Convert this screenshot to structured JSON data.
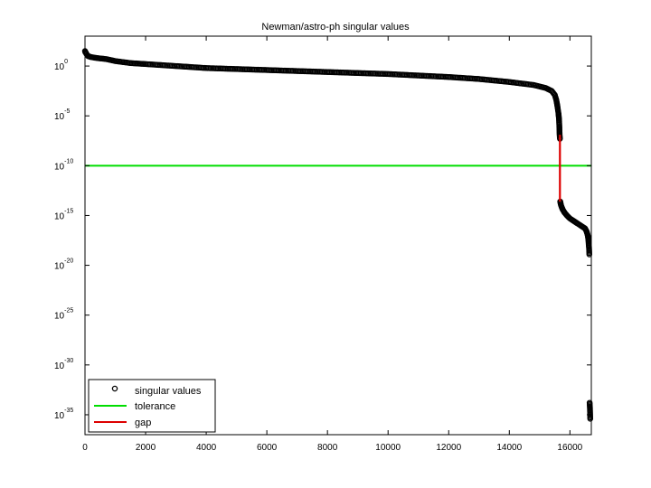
{
  "chart_data": {
    "type": "scatter",
    "title": "Newman/astro-ph singular values",
    "xlabel": "",
    "ylabel": "",
    "xlim": [
      0,
      16706
    ],
    "ylim": [
      -37,
      3
    ],
    "y_scale": "log",
    "grid": false,
    "legend_position": "bottom-left",
    "x_ticks": [
      "0",
      "2000",
      "4000",
      "6000",
      "8000",
      "10000",
      "12000",
      "14000",
      "16000"
    ],
    "x_tick_values": [
      0,
      2000,
      4000,
      6000,
      8000,
      10000,
      12000,
      14000,
      16000
    ],
    "y_ticks": [
      {
        "base": "10",
        "exp": "0",
        "log10": 0
      },
      {
        "base": "10",
        "exp": "-5",
        "log10": -5
      },
      {
        "base": "10",
        "exp": "-10",
        "log10": -10
      },
      {
        "base": "10",
        "exp": "-15",
        "log10": -15
      },
      {
        "base": "10",
        "exp": "-20",
        "log10": -20
      },
      {
        "base": "10",
        "exp": "-25",
        "log10": -25
      },
      {
        "base": "10",
        "exp": "-30",
        "log10": -30
      },
      {
        "base": "10",
        "exp": "-35",
        "log10": -35
      }
    ],
    "series": [
      {
        "name": "singular values",
        "kind": "markers",
        "color": "#000000",
        "points_log10": [
          [
            1,
            1.5
          ],
          [
            10,
            1.4
          ],
          [
            25,
            1.35
          ],
          [
            50,
            1.2
          ],
          [
            100,
            1.0
          ],
          [
            200,
            0.9
          ],
          [
            400,
            0.8
          ],
          [
            700,
            0.7
          ],
          [
            1000,
            0.5
          ],
          [
            1500,
            0.3
          ],
          [
            2000,
            0.2
          ],
          [
            3000,
            0.0
          ],
          [
            4000,
            -0.2
          ],
          [
            5000,
            -0.3
          ],
          [
            6000,
            -0.4
          ],
          [
            7000,
            -0.5
          ],
          [
            8000,
            -0.6
          ],
          [
            9000,
            -0.7
          ],
          [
            10000,
            -0.8
          ],
          [
            11000,
            -0.95
          ],
          [
            12000,
            -1.1
          ],
          [
            13000,
            -1.3
          ],
          [
            14000,
            -1.6
          ],
          [
            14800,
            -1.9
          ],
          [
            15200,
            -2.2
          ],
          [
            15400,
            -2.5
          ],
          [
            15500,
            -2.9
          ],
          [
            15550,
            -3.4
          ],
          [
            15580,
            -3.9
          ],
          [
            15600,
            -4.3
          ],
          [
            15620,
            -4.7
          ],
          [
            15630,
            -5.0
          ],
          [
            15640,
            -5.3
          ],
          [
            15650,
            -6.0
          ],
          [
            15660,
            -6.9
          ],
          [
            15670,
            -7.3
          ],
          [
            15680,
            -13.6
          ],
          [
            15700,
            -13.9
          ],
          [
            15720,
            -14.1
          ],
          [
            15760,
            -14.4
          ],
          [
            15820,
            -14.7
          ],
          [
            15900,
            -15.0
          ],
          [
            16000,
            -15.3
          ],
          [
            16100,
            -15.5
          ],
          [
            16200,
            -15.7
          ],
          [
            16300,
            -15.9
          ],
          [
            16400,
            -16.1
          ],
          [
            16500,
            -16.3
          ],
          [
            16550,
            -16.6
          ],
          [
            16580,
            -16.9
          ],
          [
            16600,
            -17.2
          ],
          [
            16610,
            -17.5
          ],
          [
            16620,
            -17.9
          ],
          [
            16630,
            -18.2
          ],
          [
            16640,
            -18.9
          ],
          [
            16650,
            -33.8
          ],
          [
            16660,
            -34.3
          ],
          [
            16670,
            -35.4
          ]
        ]
      },
      {
        "name": "tolerance",
        "kind": "hline",
        "color": "#00dd00",
        "y_log10": -10
      },
      {
        "name": "gap",
        "kind": "vline",
        "color": "#dd0000",
        "x": 15670,
        "y_log10_range": [
          -13.6,
          -6.9
        ]
      }
    ]
  }
}
